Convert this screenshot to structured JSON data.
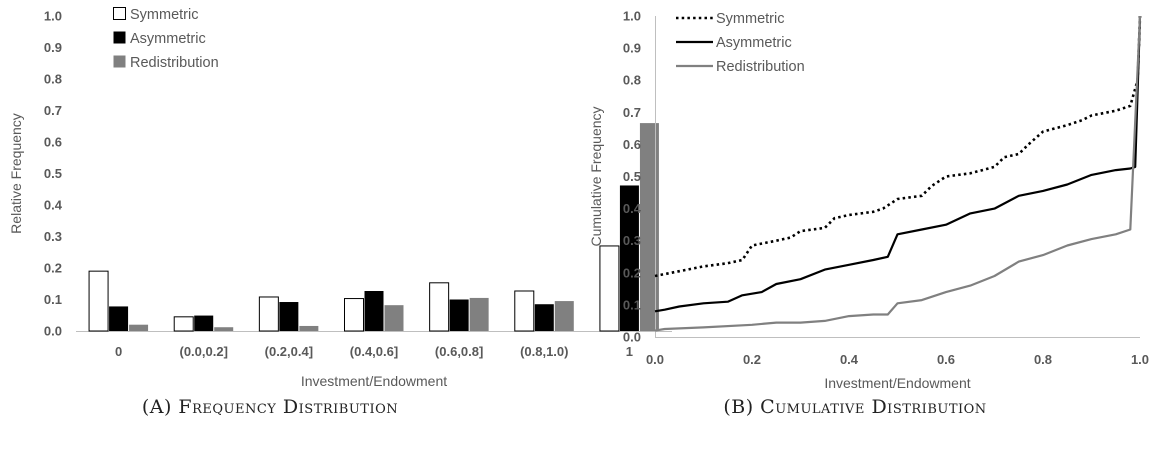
{
  "captions": {
    "a": {
      "prefix": "(A) ",
      "text": "Frequency Distribution"
    },
    "b": {
      "prefix": "(B) ",
      "text": "Cumulative Distribution"
    }
  },
  "colors": {
    "symmetric": "#ffffff",
    "asymmetric": "#000000",
    "redistribution": "#808080",
    "axis_text": "#595959"
  },
  "chart_data": [
    {
      "type": "bar",
      "title": "",
      "xlabel": "Investment/Endowment",
      "ylabel": "Relative Frequency",
      "ylim": [
        0,
        1.0
      ],
      "yticks": [
        "0.0",
        "0.1",
        "0.2",
        "0.3",
        "0.4",
        "0.5",
        "0.6",
        "0.7",
        "0.8",
        "0.9",
        "1.0"
      ],
      "categories": [
        "0",
        "(0.0,0.2]",
        "(0.2,0.4]",
        "(0.4,0.6]",
        "(0.6,0.8]",
        "(0.8,1.0)",
        "1"
      ],
      "series": [
        {
          "name": "Symmetric",
          "values": [
            0.19,
            0.045,
            0.108,
            0.103,
            0.153,
            0.127,
            0.27
          ]
        },
        {
          "name": "Asymmetric",
          "values": [
            0.078,
            0.049,
            0.092,
            0.127,
            0.1,
            0.085,
            0.462
          ]
        },
        {
          "name": "Redistribution",
          "values": [
            0.02,
            0.012,
            0.016,
            0.082,
            0.105,
            0.095,
            0.66
          ]
        }
      ],
      "legend": "top-left",
      "grid": false
    },
    {
      "type": "line",
      "title": "",
      "xlabel": "Investment/Endowment",
      "ylabel": "Cumulative Frequency",
      "xlim": [
        0,
        1.0
      ],
      "ylim": [
        0,
        1.0
      ],
      "xticks": [
        "0.0",
        "0.2",
        "0.4",
        "0.6",
        "0.8",
        "1.0"
      ],
      "yticks": [
        "0.0",
        "0.1",
        "0.2",
        "0.3",
        "0.4",
        "0.5",
        "0.6",
        "0.7",
        "0.8",
        "0.9",
        "1.0"
      ],
      "series": [
        {
          "name": "Symmetric",
          "x": [
            0,
            0.05,
            0.1,
            0.15,
            0.18,
            0.2,
            0.25,
            0.28,
            0.3,
            0.35,
            0.37,
            0.4,
            0.45,
            0.47,
            0.5,
            0.55,
            0.57,
            0.6,
            0.65,
            0.7,
            0.72,
            0.75,
            0.77,
            0.8,
            0.85,
            0.88,
            0.9,
            0.95,
            0.98,
            0.995,
            1.0
          ],
          "y": [
            0.19,
            0.205,
            0.22,
            0.23,
            0.24,
            0.285,
            0.3,
            0.31,
            0.33,
            0.34,
            0.37,
            0.38,
            0.39,
            0.4,
            0.43,
            0.44,
            0.47,
            0.5,
            0.51,
            0.53,
            0.56,
            0.57,
            0.6,
            0.64,
            0.66,
            0.675,
            0.69,
            0.705,
            0.72,
            0.8,
            1.0
          ]
        },
        {
          "name": "Asymmetric",
          "x": [
            0,
            0.02,
            0.05,
            0.1,
            0.15,
            0.18,
            0.22,
            0.25,
            0.3,
            0.35,
            0.4,
            0.45,
            0.48,
            0.5,
            0.55,
            0.6,
            0.65,
            0.7,
            0.75,
            0.8,
            0.85,
            0.9,
            0.95,
            0.98,
            0.99,
            1.0
          ],
          "y": [
            0.08,
            0.085,
            0.095,
            0.105,
            0.11,
            0.13,
            0.14,
            0.165,
            0.18,
            0.21,
            0.225,
            0.24,
            0.25,
            0.32,
            0.335,
            0.35,
            0.385,
            0.4,
            0.44,
            0.455,
            0.475,
            0.505,
            0.52,
            0.525,
            0.53,
            1.0
          ]
        },
        {
          "name": "Redistribution",
          "x": [
            0,
            0.02,
            0.1,
            0.2,
            0.25,
            0.3,
            0.35,
            0.4,
            0.45,
            0.48,
            0.5,
            0.55,
            0.6,
            0.65,
            0.7,
            0.75,
            0.8,
            0.85,
            0.9,
            0.95,
            0.98,
            1.0
          ],
          "y": [
            0.02,
            0.025,
            0.03,
            0.038,
            0.045,
            0.045,
            0.05,
            0.065,
            0.07,
            0.07,
            0.105,
            0.115,
            0.14,
            0.16,
            0.19,
            0.235,
            0.255,
            0.285,
            0.305,
            0.32,
            0.335,
            1.0
          ]
        }
      ],
      "legend": "top-left",
      "grid": false
    }
  ]
}
